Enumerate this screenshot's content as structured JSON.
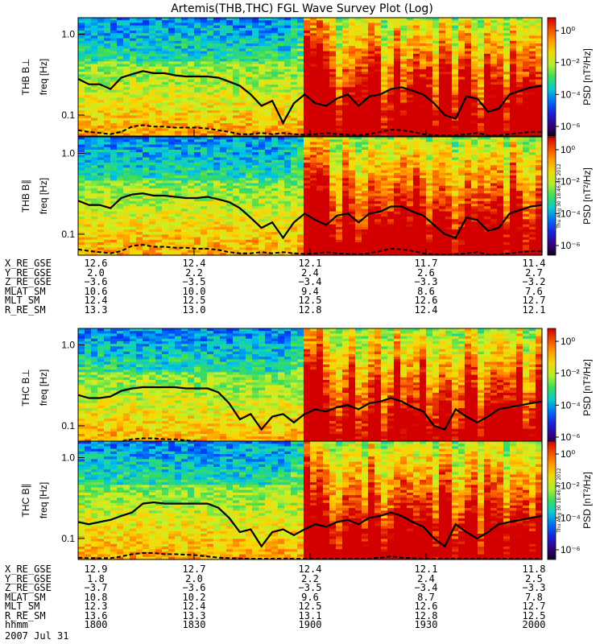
{
  "title": "Artemis(THB,THC) FGL Wave Survey Plot (Log)",
  "timestamp_b": "Thu Aug 30 18:46:46 2012",
  "timestamp_c": "Thu Aug 30 18:46:47 2012",
  "date": "2007 Jul 31",
  "colorbar": {
    "label": "PSD [nT²/Hz]",
    "ticks": [
      "10⁰",
      "10⁻²",
      "10⁻⁴",
      "10⁻⁶"
    ]
  },
  "ephem_b": {
    "rows": [
      {
        "name": "X_RE_GSE",
        "values": [
          "12.6",
          "12.4",
          "12.1",
          "11.7",
          "11.4"
        ]
      },
      {
        "name": "Y_RE_GSE",
        "values": [
          "2.0",
          "2.2",
          "2.4",
          "2.6",
          "2.7"
        ]
      },
      {
        "name": "Z_RE_GSE",
        "values": [
          "−3.6",
          "−3.5",
          "−3.4",
          "−3.3",
          "−3.2"
        ]
      },
      {
        "name": "MLAT_SM",
        "values": [
          "10.6",
          "10.0",
          "9.4",
          "8.6",
          "7.6"
        ]
      },
      {
        "name": "MLT_SM",
        "values": [
          "12.4",
          "12.5",
          "12.5",
          "12.6",
          "12.7"
        ]
      },
      {
        "name": "R_RE_SM",
        "values": [
          "13.3",
          "13.0",
          "12.8",
          "12.4",
          "12.1"
        ]
      }
    ]
  },
  "ephem_c": {
    "rows": [
      {
        "name": "X_RE_GSE",
        "values": [
          "12.9",
          "12.7",
          "12.4",
          "12.1",
          "11.8"
        ]
      },
      {
        "name": "Y_RE_GSE",
        "values": [
          "1.8",
          "2.0",
          "2.2",
          "2.4",
          "2.5"
        ]
      },
      {
        "name": "Z_RE_GSE",
        "values": [
          "−3.7",
          "−3.6",
          "−3.5",
          "−3.4",
          "−3.3"
        ]
      },
      {
        "name": "MLAT_SM",
        "values": [
          "10.8",
          "10.2",
          "9.6",
          "8.7",
          "7.8"
        ]
      },
      {
        "name": "MLT_SM",
        "values": [
          "12.3",
          "12.4",
          "12.5",
          "12.6",
          "12.7"
        ]
      },
      {
        "name": "R_RE_SM",
        "values": [
          "13.6",
          "13.3",
          "13.1",
          "12.8",
          "12.5"
        ]
      },
      {
        "name": "hhmm",
        "values": [
          "1800",
          "1830",
          "1900",
          "1930",
          "2000"
        ]
      }
    ]
  },
  "chart_data": [
    {
      "type": "heatmap",
      "panel": "THB B⊥",
      "ylabel": "THB B⊥",
      "ylabel2": "freq [Hz]",
      "ytick_labels": [
        "1.0",
        "0.1"
      ],
      "ylog": true,
      "ylim": [
        0.055,
        1.6
      ],
      "x_hhmm": [
        "1800",
        "1830",
        "1900",
        "1930",
        "2000"
      ],
      "solid_line_hz": [
        0.28,
        0.24,
        0.24,
        0.21,
        0.29,
        0.32,
        0.35,
        0.33,
        0.33,
        0.31,
        0.3,
        0.3,
        0.3,
        0.29,
        0.26,
        0.23,
        0.18,
        0.13,
        0.15,
        0.08,
        0.14,
        0.18,
        0.14,
        0.13,
        0.16,
        0.18,
        0.13,
        0.17,
        0.18,
        0.21,
        0.22,
        0.2,
        0.18,
        0.14,
        0.1,
        0.09,
        0.17,
        0.16,
        0.11,
        0.12,
        0.18,
        0.2,
        0.22,
        0.23
      ],
      "dashed_line_hz": [
        0.065,
        0.062,
        0.06,
        0.058,
        0.062,
        0.072,
        0.075,
        0.072,
        0.072,
        0.07,
        0.07,
        0.07,
        0.068,
        0.065,
        0.062,
        0.058,
        0.058,
        0.06,
        0.058,
        0.06,
        0.058,
        0.057,
        0.058,
        0.06,
        0.058,
        0.057,
        0.056,
        0.058,
        0.062,
        0.066,
        0.065,
        0.062,
        0.058,
        0.056,
        0.055,
        0.056,
        0.058,
        0.06,
        0.056,
        0.056,
        0.058,
        0.06,
        0.062,
        0.062
      ]
    },
    {
      "type": "heatmap",
      "panel": "THB B∥",
      "ylabel": "THB B∥",
      "ylabel2": "freq [Hz]",
      "ytick_labels": [
        "1.0",
        "0.1"
      ],
      "ylog": true,
      "ylim": [
        0.055,
        1.6
      ],
      "solid_line_hz": [
        0.26,
        0.23,
        0.23,
        0.21,
        0.28,
        0.31,
        0.32,
        0.3,
        0.3,
        0.29,
        0.28,
        0.28,
        0.29,
        0.27,
        0.25,
        0.21,
        0.16,
        0.12,
        0.14,
        0.09,
        0.14,
        0.18,
        0.15,
        0.13,
        0.17,
        0.18,
        0.14,
        0.18,
        0.19,
        0.22,
        0.22,
        0.19,
        0.17,
        0.13,
        0.1,
        0.09,
        0.16,
        0.15,
        0.11,
        0.12,
        0.18,
        0.2,
        0.22,
        0.23
      ],
      "dashed_line_hz": [
        0.065,
        0.062,
        0.06,
        0.058,
        0.062,
        0.072,
        0.074,
        0.07,
        0.07,
        0.068,
        0.068,
        0.066,
        0.066,
        0.064,
        0.06,
        0.058,
        0.058,
        0.06,
        0.058,
        0.06,
        0.058,
        0.057,
        0.058,
        0.06,
        0.058,
        0.057,
        0.056,
        0.058,
        0.062,
        0.066,
        0.065,
        0.062,
        0.058,
        0.056,
        0.055,
        0.056,
        0.058,
        0.06,
        0.056,
        0.056,
        0.058,
        0.06,
        0.062,
        0.062
      ]
    },
    {
      "type": "heatmap",
      "panel": "THC B⊥",
      "ylabel": "THC B⊥",
      "ylabel2": "freq [Hz]",
      "ytick_labels": [
        "1.0",
        "0.1"
      ],
      "ylog": true,
      "ylim": [
        0.055,
        1.6
      ],
      "solid_line_hz": [
        0.24,
        0.22,
        0.22,
        0.23,
        0.27,
        0.29,
        0.3,
        0.3,
        0.3,
        0.3,
        0.29,
        0.29,
        0.29,
        0.26,
        0.19,
        0.12,
        0.14,
        0.09,
        0.13,
        0.14,
        0.11,
        0.14,
        0.16,
        0.15,
        0.17,
        0.18,
        0.16,
        0.19,
        0.2,
        0.22,
        0.2,
        0.17,
        0.15,
        0.1,
        0.09,
        0.16,
        0.13,
        0.11,
        0.13,
        0.16,
        0.17,
        0.18,
        0.19,
        0.2
      ],
      "dashed_line_hz": [
        0.062,
        0.06,
        0.058,
        0.058,
        0.064,
        0.068,
        0.07,
        0.07,
        0.068,
        0.068,
        0.066,
        0.064,
        0.062,
        0.06,
        0.058,
        0.058,
        0.056,
        0.056,
        0.058,
        0.056,
        0.056,
        0.058,
        0.058,
        0.057,
        0.056,
        0.056,
        0.057,
        0.058,
        0.06,
        0.062,
        0.06,
        0.058,
        0.056,
        0.055,
        0.055,
        0.056,
        0.056,
        0.056,
        0.056,
        0.057,
        0.058,
        0.058,
        0.058,
        0.058
      ]
    },
    {
      "type": "heatmap",
      "panel": "THC B∥",
      "ylabel": "THC B∥",
      "ylabel2": "freq [Hz]",
      "ytick_labels": [
        "1.0",
        "0.1"
      ],
      "ylog": true,
      "ylim": [
        0.055,
        1.6
      ],
      "solid_line_hz": [
        0.16,
        0.15,
        0.16,
        0.17,
        0.19,
        0.21,
        0.27,
        0.28,
        0.27,
        0.27,
        0.27,
        0.27,
        0.27,
        0.24,
        0.18,
        0.12,
        0.13,
        0.08,
        0.12,
        0.13,
        0.11,
        0.13,
        0.15,
        0.14,
        0.16,
        0.17,
        0.15,
        0.18,
        0.19,
        0.21,
        0.19,
        0.16,
        0.14,
        0.1,
        0.08,
        0.15,
        0.12,
        0.1,
        0.12,
        0.15,
        0.16,
        0.17,
        0.18,
        0.19
      ],
      "dashed_line_hz": [
        0.058,
        0.057,
        0.057,
        0.057,
        0.06,
        0.064,
        0.066,
        0.066,
        0.064,
        0.064,
        0.063,
        0.062,
        0.06,
        0.058,
        0.057,
        0.056,
        0.056,
        0.055,
        0.056,
        0.055,
        0.055,
        0.056,
        0.056,
        0.056,
        0.055,
        0.055,
        0.056,
        0.056,
        0.058,
        0.06,
        0.058,
        0.057,
        0.056,
        0.055,
        0.055,
        0.055,
        0.055,
        0.055,
        0.055,
        0.056,
        0.056,
        0.056,
        0.056,
        0.056
      ]
    }
  ]
}
